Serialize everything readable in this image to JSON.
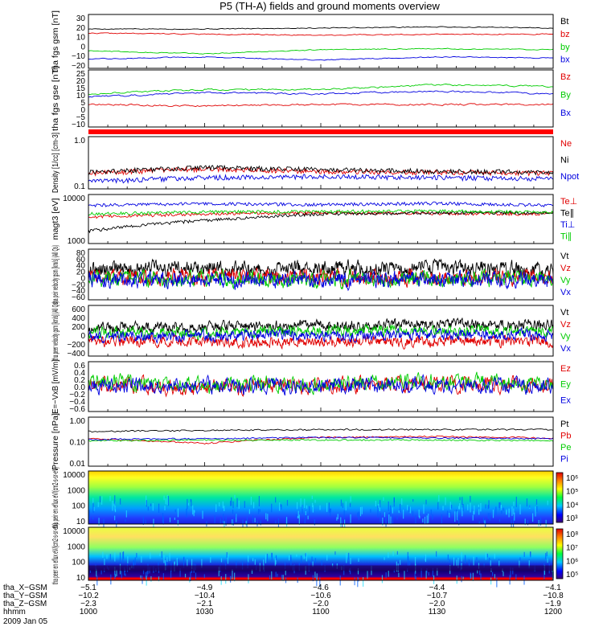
{
  "title": "P5 (TH-A) fields and ground moments overview",
  "colors": {
    "black": "#000000",
    "red": "#e00000",
    "green": "#00cc00",
    "blue": "#0000e0"
  },
  "chart_data": [
    {
      "type": "line",
      "ylabel": "tha fgs gsm [nT]",
      "yticks": [
        "30",
        "20",
        "10",
        "0",
        "−10",
        "−20"
      ],
      "ylim": [
        -20,
        32
      ],
      "series": [
        {
          "name": "Bt",
          "color": "black",
          "approx_level": 18,
          "x": [
            10.0,
            10.5,
            11.0,
            11.5,
            12.0
          ],
          "values": [
            18,
            18,
            19,
            20,
            19
          ]
        },
        {
          "name": "bz",
          "color": "red",
          "approx_level": 13,
          "x": [
            10.0,
            10.5,
            11.0,
            11.5,
            12.0
          ],
          "values": [
            14,
            13,
            12,
            13,
            13
          ]
        },
        {
          "name": "by",
          "color": "green",
          "approx_level": -3,
          "x": [
            10.0,
            10.5,
            11.0,
            11.5,
            12.0
          ],
          "values": [
            -3,
            -6,
            -2,
            -1,
            -2
          ]
        },
        {
          "name": "bx",
          "color": "blue",
          "approx_level": -10,
          "x": [
            10.0,
            10.5,
            11.0,
            11.5,
            12.0
          ],
          "values": [
            -11,
            -9,
            -12,
            -9,
            -10
          ]
        }
      ]
    },
    {
      "type": "line",
      "ylabel": "tha fgs gse [nT]",
      "yticks": [
        "25",
        "20",
        "15",
        "10",
        "5",
        "0",
        "−5",
        "−10"
      ],
      "ylim": [
        -13,
        25
      ],
      "series": [
        {
          "name": "Bz",
          "color": "red",
          "x": [
            10.0,
            10.5,
            11.0,
            11.5,
            12.0
          ],
          "values": [
            2,
            1,
            2,
            2,
            2
          ]
        },
        {
          "name": "By",
          "color": "green",
          "x": [
            10.0,
            10.5,
            11.0,
            11.5,
            12.0
          ],
          "values": [
            9,
            12,
            12,
            15,
            14
          ]
        },
        {
          "name": "Bx",
          "color": "blue",
          "x": [
            10.0,
            10.5,
            11.0,
            11.5,
            12.0
          ],
          "values": [
            7,
            10,
            9,
            11,
            9
          ]
        }
      ]
    },
    {
      "type": "line",
      "ylabel": "Density [1/cc] [cm-3]",
      "yticks": [
        "1.0",
        "0.1"
      ],
      "ylim": [
        0.09,
        1.3
      ],
      "series": [
        {
          "name": "Ne",
          "color": "red",
          "x": [
            10.0,
            10.5,
            11.0,
            11.5,
            12.0
          ],
          "values": [
            0.2,
            0.25,
            0.22,
            0.21,
            0.2
          ]
        },
        {
          "name": "Ni",
          "color": "black",
          "x": [
            10.0,
            10.5,
            11.0,
            11.5,
            12.0
          ],
          "values": [
            0.21,
            0.27,
            0.24,
            0.22,
            0.21
          ]
        },
        {
          "name": "Npot",
          "color": "blue",
          "x": [
            10.0,
            10.5,
            11.0,
            11.5,
            12.0
          ],
          "values": [
            0.13,
            0.16,
            0.17,
            0.16,
            0.15
          ]
        }
      ]
    },
    {
      "type": "line",
      "ylabel": "magt3 [eV]",
      "yticks": [
        "10000",
        "1000"
      ],
      "ylim": [
        1000,
        10000
      ],
      "series": [
        {
          "name": "Te⊥",
          "color": "red",
          "x": [
            10.0,
            10.5,
            11.0,
            11.5,
            12.0
          ],
          "values": [
            3500,
            4000,
            4200,
            4100,
            4000
          ]
        },
        {
          "name": "Te∥",
          "color": "black",
          "x": [
            10.0,
            10.5,
            11.0,
            11.5,
            12.0
          ],
          "values": [
            1800,
            3000,
            4000,
            4200,
            4300
          ]
        },
        {
          "name": "Ti⊥",
          "color": "blue",
          "x": [
            10.0,
            10.5,
            11.0,
            11.5,
            12.0
          ],
          "values": [
            6000,
            6500,
            6200,
            6600,
            6000
          ]
        },
        {
          "name": "Ti∥",
          "color": "green",
          "x": [
            10.0,
            10.5,
            11.0,
            11.5,
            12.0
          ],
          "values": [
            4000,
            4400,
            4500,
            4600,
            4300
          ]
        }
      ]
    },
    {
      "type": "line",
      "ylabel": "tha peir velocity gsm [km/s] (All Qs)",
      "yticks": [
        "80",
        "60",
        "40",
        "20",
        "0",
        "−20",
        "−40",
        "−60"
      ],
      "ylim": [
        -65,
        82
      ],
      "series": [
        {
          "name": "Vt",
          "color": "black",
          "x": [
            10.0,
            10.5,
            11.0,
            11.5,
            12.0
          ],
          "values": [
            25,
            28,
            26,
            27,
            25
          ]
        },
        {
          "name": "Vz",
          "color": "red",
          "x": [
            10.0,
            10.5,
            11.0,
            11.5,
            12.0
          ],
          "values": [
            0,
            2,
            0,
            -1,
            0
          ]
        },
        {
          "name": "Vy",
          "color": "green",
          "x": [
            10.0,
            10.5,
            11.0,
            11.5,
            12.0
          ],
          "values": [
            -5,
            -4,
            -6,
            -5,
            -5
          ]
        },
        {
          "name": "Vx",
          "color": "blue",
          "x": [
            10.0,
            10.5,
            11.0,
            11.5,
            12.0
          ],
          "values": [
            -8,
            -6,
            -9,
            -7,
            -8
          ]
        }
      ]
    },
    {
      "type": "line",
      "ylabel": "tha peer velocity gsm [km/s] (All Qs)",
      "yticks": [
        "600",
        "400",
        "200",
        "0",
        "−200",
        "−400"
      ],
      "ylim": [
        -430,
        620
      ],
      "series": [
        {
          "name": "Vt",
          "color": "black",
          "x": [
            10.0,
            10.5,
            11.0,
            11.5,
            12.0
          ],
          "values": [
            150,
            180,
            200,
            230,
            210
          ]
        },
        {
          "name": "Vz",
          "color": "red",
          "x": [
            10.0,
            10.5,
            11.0,
            11.5,
            12.0
          ],
          "values": [
            -120,
            -130,
            -140,
            -130,
            -120
          ]
        },
        {
          "name": "Vy",
          "color": "green",
          "x": [
            10.0,
            10.5,
            11.0,
            11.5,
            12.0
          ],
          "values": [
            50,
            60,
            80,
            90,
            70
          ]
        },
        {
          "name": "Vx",
          "color": "blue",
          "x": [
            10.0,
            10.5,
            11.0,
            11.5,
            12.0
          ],
          "values": [
            -20,
            -10,
            0,
            10,
            0
          ]
        }
      ]
    },
    {
      "type": "line",
      "ylabel": "E=−VxB [mV/m]",
      "yticks": [
        "0.6",
        "0.4",
        "0.2",
        "0.0",
        "−0.2",
        "−0.4",
        "−0.6"
      ],
      "ylim": [
        -0.72,
        0.66
      ],
      "series": [
        {
          "name": "Ez",
          "color": "red",
          "x": [
            10.0,
            10.5,
            11.0,
            11.5,
            12.0
          ],
          "values": [
            0.05,
            -0.05,
            0.0,
            0.05,
            0.02
          ]
        },
        {
          "name": "Ey",
          "color": "green",
          "x": [
            10.0,
            10.5,
            11.0,
            11.5,
            12.0
          ],
          "values": [
            0.1,
            0.0,
            0.05,
            0.1,
            0.05
          ]
        },
        {
          "name": "Ex",
          "color": "blue",
          "x": [
            10.0,
            10.5,
            11.0,
            11.5,
            12.0
          ],
          "values": [
            0.0,
            -0.02,
            0.0,
            0.02,
            0.0
          ]
        }
      ]
    },
    {
      "type": "line",
      "ylabel": "Pressure [nPa]",
      "yticks": [
        "1.00",
        "0.10",
        "0.01"
      ],
      "ylim": [
        0.01,
        1.4
      ],
      "log": true,
      "series": [
        {
          "name": "Pt",
          "color": "black",
          "x": [
            10.0,
            10.5,
            11.0,
            11.5,
            12.0
          ],
          "values": [
            0.33,
            0.37,
            0.4,
            0.4,
            0.4
          ]
        },
        {
          "name": "Pb",
          "color": "red",
          "x": [
            10.0,
            10.5,
            11.0,
            11.5,
            12.0
          ],
          "values": [
            0.16,
            0.1,
            0.18,
            0.2,
            0.17
          ]
        },
        {
          "name": "Pe",
          "color": "green",
          "x": [
            10.0,
            10.5,
            11.0,
            11.5,
            12.0
          ],
          "values": [
            0.13,
            0.14,
            0.14,
            0.14,
            0.13
          ]
        },
        {
          "name": "Pi",
          "color": "blue",
          "x": [
            10.0,
            10.5,
            11.0,
            11.5,
            12.0
          ],
          "values": [
            0.15,
            0.16,
            0.18,
            0.17,
            0.16
          ]
        }
      ]
    },
    {
      "type": "heatmap",
      "ylabel": "tha peir en eflux eV/(cm2-s-sr-eV)",
      "yticks": [
        "10000",
        "1000",
        "100",
        "10"
      ],
      "colorbar_ticks": [
        "10⁶",
        "10⁵",
        "10⁴",
        "10³"
      ]
    },
    {
      "type": "heatmap",
      "ylabel": "tha peer en eflux eV/(cm2-s-sr-eV)",
      "yticks": [
        "10000",
        "1000",
        "100",
        "10"
      ],
      "colorbar_ticks": [
        "10⁸",
        "10⁷",
        "10⁶",
        "10⁵"
      ]
    }
  ],
  "xaxis": {
    "rows": [
      {
        "label": "tha_X−GSM",
        "values": [
          "−5.1",
          "−4.9",
          "−4.6",
          "−4.4",
          "−4.1"
        ]
      },
      {
        "label": "tha_Y−GSM",
        "values": [
          "−10.2",
          "−10.4",
          "−10.6",
          "−10.7",
          "−10.8"
        ]
      },
      {
        "label": "tha_Z−GSM",
        "values": [
          "−2.3",
          "−2.1",
          "−2.0",
          "−2.0",
          "−1.9"
        ]
      },
      {
        "label": "hhmm",
        "values": [
          "1000",
          "1030",
          "1100",
          "1130",
          "1200"
        ]
      }
    ],
    "date": "2009 Jan 05"
  }
}
